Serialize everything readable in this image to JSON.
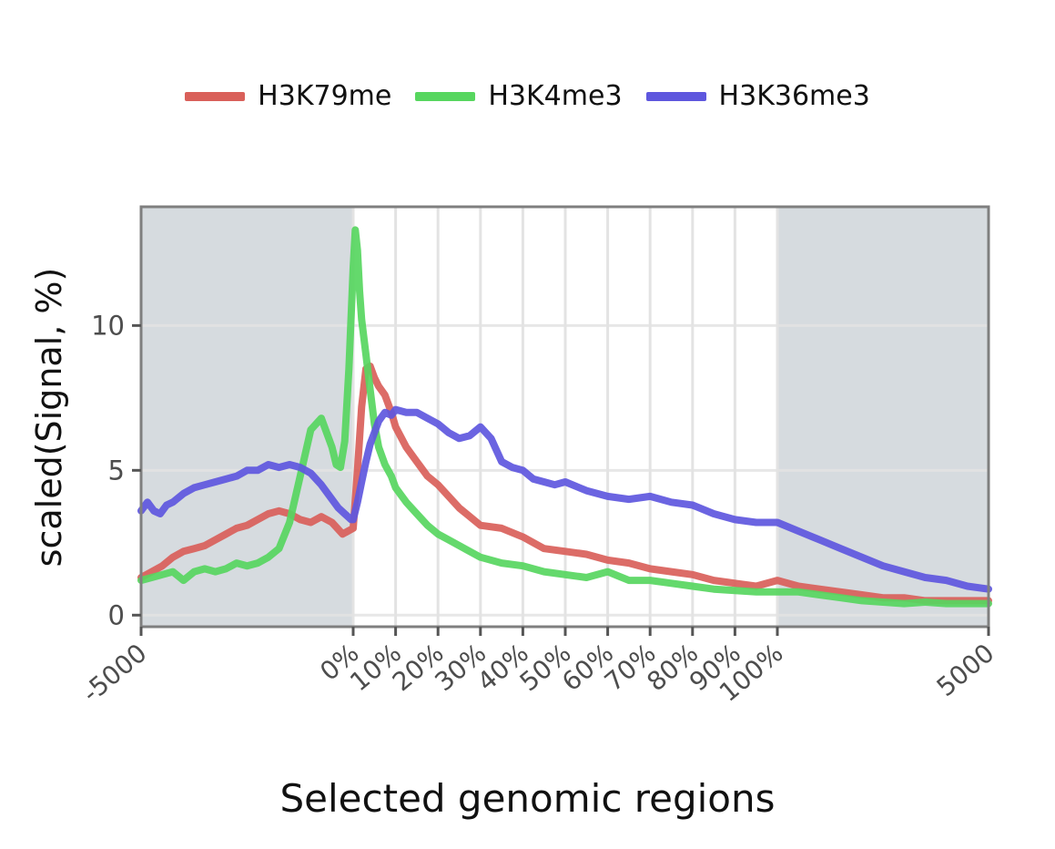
{
  "chart_data": {
    "type": "line",
    "title": "",
    "xlabel": "Selected genomic regions",
    "ylabel": "scaled(Signal, %)",
    "x_tick_labels": [
      "-5000",
      "0%",
      "10%",
      "20%",
      "30%",
      "40%",
      "50%",
      "60%",
      "70%",
      "80%",
      "90%",
      "100%",
      "5000"
    ],
    "y_ticks": [
      0,
      5,
      10
    ],
    "ylim": [
      -0.4,
      14.1
    ],
    "flank_shading": "upstream and downstream flanks shaded gray",
    "legend_position": "top",
    "grid": true,
    "x_units": "position index: 0-100 upstream flank (-5000 to 0%), 100-300 region body (0% to 100%), 300-400 downstream flank (100% to 5000)",
    "series": [
      {
        "name": "H3K79me",
        "color": "#d9605a",
        "x": [
          0,
          5,
          10,
          15,
          20,
          25,
          30,
          35,
          40,
          45,
          50,
          55,
          60,
          65,
          70,
          75,
          80,
          85,
          90,
          95,
          100,
          102,
          104,
          106,
          108,
          110,
          112,
          115,
          118,
          120,
          125,
          130,
          135,
          140,
          145,
          150,
          160,
          170,
          180,
          190,
          200,
          210,
          220,
          230,
          240,
          250,
          260,
          270,
          280,
          290,
          300,
          310,
          320,
          330,
          340,
          350,
          360,
          370,
          380,
          390,
          400
        ],
        "y": [
          1.3,
          1.5,
          1.7,
          2.0,
          2.2,
          2.3,
          2.4,
          2.6,
          2.8,
          3.0,
          3.1,
          3.3,
          3.5,
          3.6,
          3.5,
          3.3,
          3.2,
          3.4,
          3.2,
          2.8,
          3.0,
          5.0,
          7.2,
          8.5,
          8.6,
          8.2,
          7.9,
          7.6,
          7.0,
          6.5,
          5.8,
          5.3,
          4.8,
          4.5,
          4.1,
          3.7,
          3.1,
          3.0,
          2.7,
          2.3,
          2.2,
          2.1,
          1.9,
          1.8,
          1.6,
          1.5,
          1.4,
          1.2,
          1.1,
          1.0,
          1.2,
          1.0,
          0.9,
          0.8,
          0.7,
          0.6,
          0.6,
          0.5,
          0.5,
          0.5,
          0.5
        ]
      },
      {
        "name": "H3K4me3",
        "color": "#57d65f",
        "x": [
          0,
          5,
          10,
          15,
          20,
          25,
          30,
          35,
          40,
          45,
          50,
          55,
          60,
          65,
          70,
          75,
          80,
          85,
          90,
          92,
          94,
          96,
          98,
          100,
          101,
          102,
          103,
          104,
          106,
          108,
          110,
          112,
          115,
          118,
          120,
          125,
          130,
          135,
          140,
          145,
          150,
          160,
          170,
          180,
          190,
          200,
          210,
          220,
          230,
          240,
          250,
          260,
          270,
          280,
          290,
          300,
          310,
          320,
          330,
          340,
          350,
          360,
          370,
          380,
          390,
          400
        ],
        "y": [
          1.2,
          1.3,
          1.4,
          1.5,
          1.2,
          1.5,
          1.6,
          1.5,
          1.6,
          1.8,
          1.7,
          1.8,
          2.0,
          2.3,
          3.2,
          4.8,
          6.4,
          6.8,
          5.8,
          5.2,
          5.1,
          6.0,
          8.5,
          12.0,
          13.3,
          12.6,
          11.2,
          10.2,
          9.0,
          7.8,
          6.6,
          5.8,
          5.2,
          4.8,
          4.4,
          3.9,
          3.5,
          3.1,
          2.8,
          2.6,
          2.4,
          2.0,
          1.8,
          1.7,
          1.5,
          1.4,
          1.3,
          1.5,
          1.2,
          1.2,
          1.1,
          1.0,
          0.9,
          0.85,
          0.8,
          0.8,
          0.8,
          0.7,
          0.6,
          0.5,
          0.45,
          0.4,
          0.45,
          0.4,
          0.4,
          0.4
        ]
      },
      {
        "name": "H3K36me3",
        "color": "#5e57de",
        "x": [
          0,
          3,
          6,
          9,
          12,
          15,
          20,
          25,
          30,
          35,
          40,
          45,
          50,
          55,
          60,
          65,
          70,
          75,
          80,
          85,
          90,
          93,
          96,
          99,
          100,
          102,
          104,
          106,
          108,
          110,
          112,
          115,
          118,
          120,
          125,
          130,
          135,
          140,
          145,
          150,
          155,
          160,
          165,
          170,
          175,
          180,
          185,
          190,
          195,
          200,
          210,
          220,
          230,
          240,
          250,
          260,
          270,
          280,
          290,
          300,
          310,
          320,
          330,
          340,
          350,
          360,
          370,
          380,
          390,
          400
        ],
        "y": [
          3.6,
          3.9,
          3.6,
          3.5,
          3.8,
          3.9,
          4.2,
          4.4,
          4.5,
          4.6,
          4.7,
          4.8,
          5.0,
          5.0,
          5.2,
          5.1,
          5.2,
          5.1,
          4.9,
          4.5,
          4.0,
          3.7,
          3.5,
          3.3,
          3.3,
          3.9,
          4.6,
          5.3,
          5.9,
          6.3,
          6.7,
          7.0,
          6.9,
          7.1,
          7.0,
          7.0,
          6.8,
          6.6,
          6.3,
          6.1,
          6.2,
          6.5,
          6.1,
          5.3,
          5.1,
          5.0,
          4.7,
          4.6,
          4.5,
          4.6,
          4.3,
          4.1,
          4.0,
          4.1,
          3.9,
          3.8,
          3.5,
          3.3,
          3.2,
          3.2,
          2.9,
          2.6,
          2.3,
          2.0,
          1.7,
          1.5,
          1.3,
          1.2,
          1.0,
          0.9
        ]
      }
    ]
  }
}
